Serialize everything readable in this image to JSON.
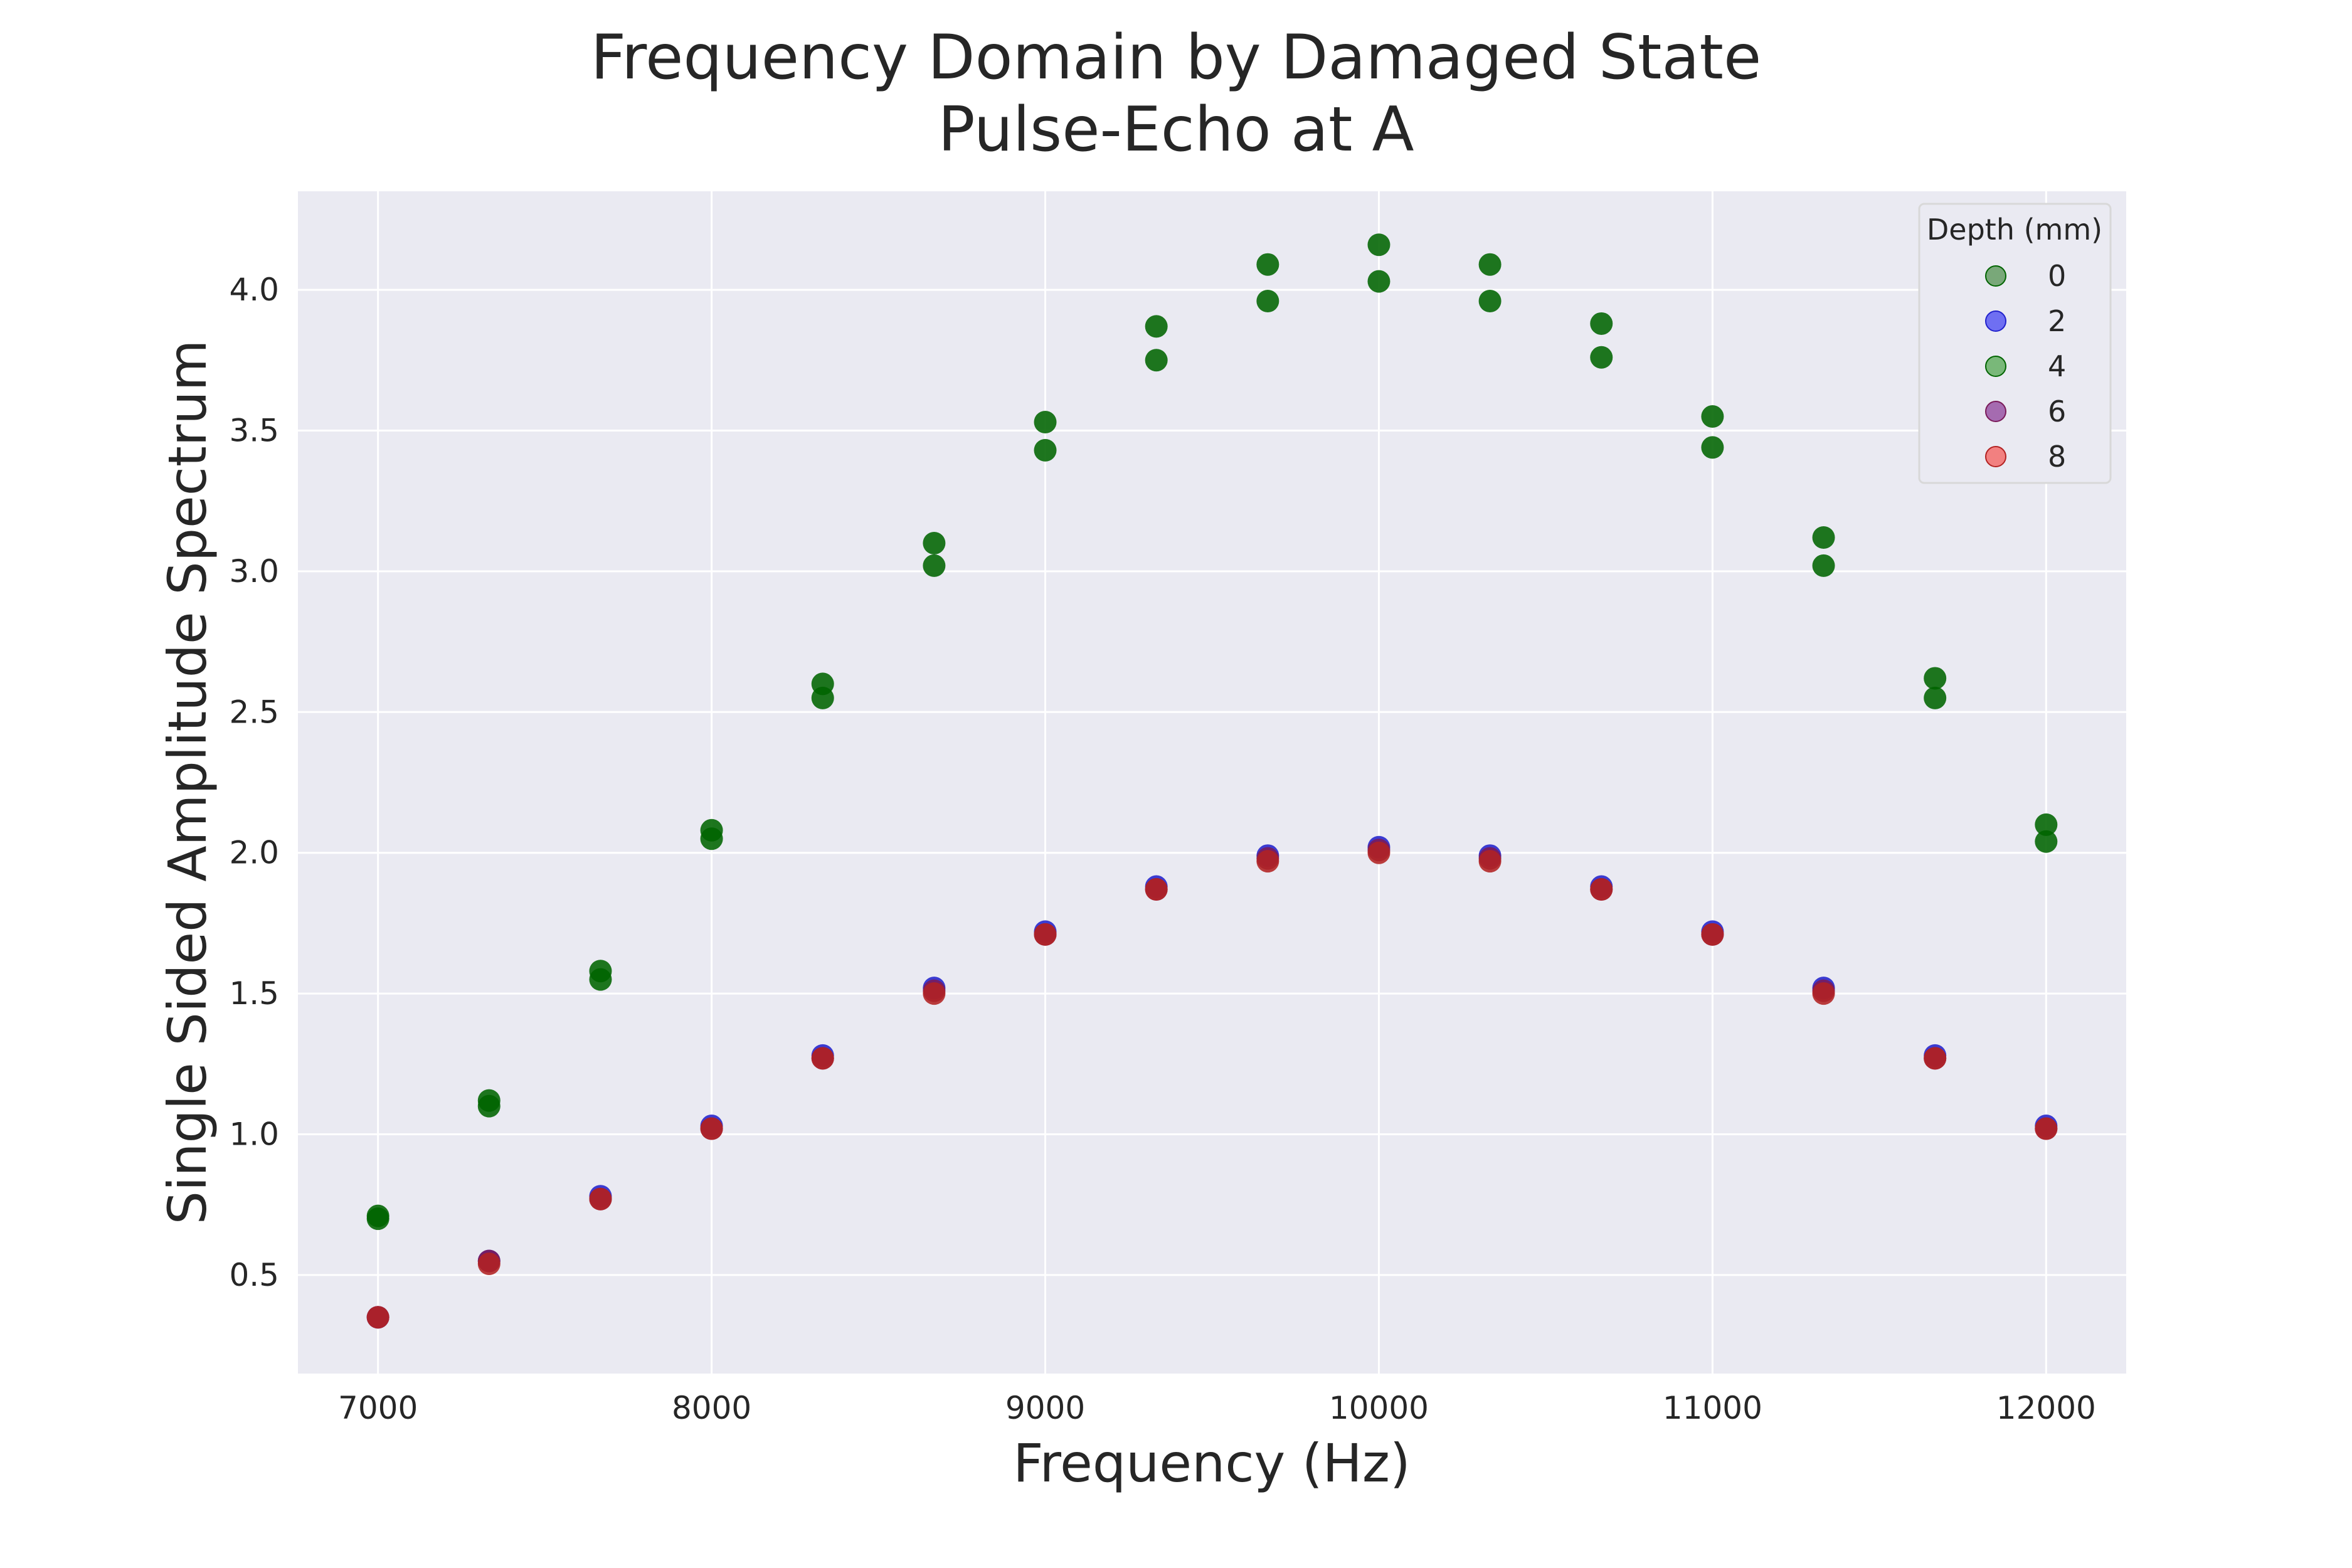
{
  "chart_data": {
    "type": "scatter",
    "title": [
      "Frequency Domain by Damaged State",
      "Pulse-Echo at A"
    ],
    "xlabel": "Frequency (Hz)",
    "ylabel": "Single Sided Amplitude Spectrum",
    "xlim": [
      6760,
      12240
    ],
    "ylim": [
      0.15,
      4.35
    ],
    "xticks": [
      7000,
      8000,
      9000,
      10000,
      11000,
      12000
    ],
    "yticks": [
      0.5,
      1.0,
      1.5,
      2.0,
      2.5,
      3.0,
      3.5,
      4.0
    ],
    "ytick_labels": [
      "0.5",
      "1.0",
      "1.5",
      "2.0",
      "2.5",
      "3.0",
      "3.5",
      "4.0"
    ],
    "grid": true,
    "background": "#eaeaf2",
    "legend": {
      "title": "Depth (mm)",
      "placement": "top-right"
    },
    "series": [
      {
        "name": "0",
        "color": "#006400",
        "legend_color": "#79a879",
        "x": [
          7000,
          7333,
          7667,
          8000,
          8333,
          8667,
          9000,
          9333,
          9667,
          10000,
          10333,
          10667,
          11000,
          11333,
          11667,
          12000
        ],
        "y": [
          0.7,
          1.1,
          1.55,
          2.05,
          2.55,
          3.02,
          3.43,
          3.75,
          3.96,
          4.03,
          3.96,
          3.76,
          3.44,
          3.02,
          2.55,
          2.04
        ]
      },
      {
        "name": "2",
        "color": "#2222cc",
        "legend_color": "#6f6ff2",
        "x": [
          7000,
          7333,
          7667,
          8000,
          8333,
          8667,
          9000,
          9333,
          9667,
          10000,
          10333,
          10667,
          11000,
          11333,
          11667,
          12000
        ],
        "y": [
          0.35,
          0.55,
          0.78,
          1.03,
          1.28,
          1.52,
          1.72,
          1.88,
          1.99,
          2.02,
          1.99,
          1.88,
          1.72,
          1.52,
          1.28,
          1.03
        ]
      },
      {
        "name": "4",
        "color": "#006400",
        "legend_color": "#79b879",
        "x": [
          7000,
          7333,
          7667,
          8000,
          8333,
          8667,
          9000,
          9333,
          9667,
          10000,
          10333,
          10667,
          11000,
          11333,
          11667,
          12000
        ],
        "y": [
          0.71,
          1.12,
          1.58,
          2.08,
          2.6,
          3.1,
          3.53,
          3.87,
          4.09,
          4.16,
          4.09,
          3.88,
          3.55,
          3.12,
          2.62,
          2.1
        ]
      },
      {
        "name": "6",
        "color": "#7a1a5a",
        "legend_color": "#a56bb0",
        "x": [
          7000,
          7333,
          7667,
          8000,
          8333,
          8667,
          9000,
          9333,
          9667,
          10000,
          10333,
          10667,
          11000,
          11333,
          11667,
          12000
        ],
        "y": [
          0.35,
          0.55,
          0.77,
          1.02,
          1.27,
          1.51,
          1.71,
          1.87,
          1.98,
          2.01,
          1.98,
          1.87,
          1.71,
          1.51,
          1.27,
          1.02
        ]
      },
      {
        "name": "8",
        "color": "#b22222",
        "legend_color": "#f28080",
        "x": [
          7000,
          7333,
          7667,
          8000,
          8333,
          8667,
          9000,
          9333,
          9667,
          10000,
          10333,
          10667,
          11000,
          11333,
          11667,
          12000
        ],
        "y": [
          0.35,
          0.54,
          0.77,
          1.02,
          1.27,
          1.5,
          1.71,
          1.87,
          1.97,
          2.0,
          1.97,
          1.87,
          1.71,
          1.5,
          1.27,
          1.02
        ]
      }
    ]
  }
}
